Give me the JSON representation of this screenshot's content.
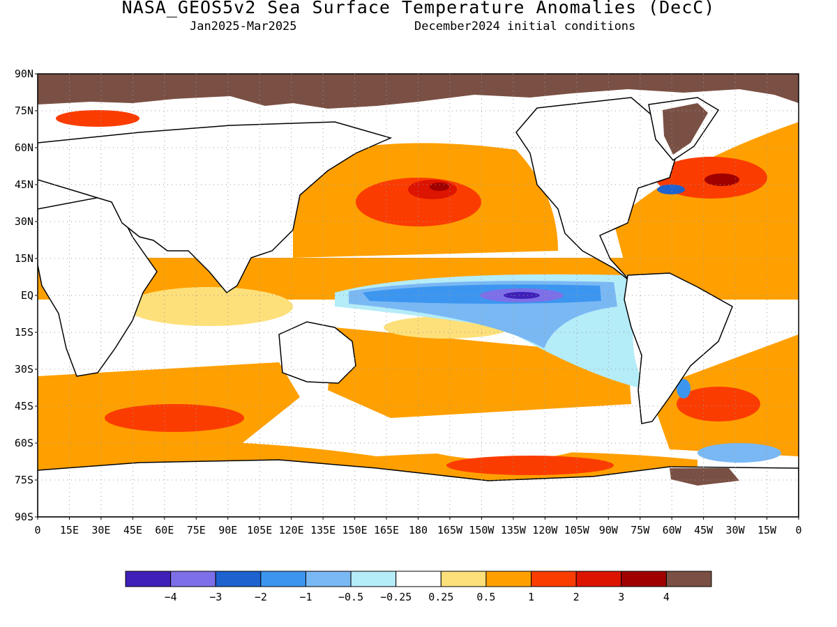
{
  "title": "NASA_GEOS5v2 Sea Surface Temperature Anomalies (DecC)",
  "subtitle_left": "Jan2025-Mar2025",
  "subtitle_right": "December2024 initial conditions",
  "lat_labels": [
    "90N",
    "75N",
    "60N",
    "45N",
    "30N",
    "15N",
    "EQ",
    "15S",
    "30S",
    "45S",
    "60S",
    "75S",
    "90S"
  ],
  "lon_labels": [
    "0",
    "15E",
    "30E",
    "45E",
    "60E",
    "75E",
    "90E",
    "105E",
    "120E",
    "135E",
    "150E",
    "165E",
    "180",
    "165W",
    "150W",
    "135W",
    "120W",
    "105W",
    "90W",
    "75W",
    "60W",
    "45W",
    "30W",
    "15W",
    "0"
  ],
  "colorbar": {
    "colors": [
      "#3f20b8",
      "#7d6fe8",
      "#1e62d0",
      "#3c96f0",
      "#7ab8f4",
      "#b4ecf8",
      "#ffffff",
      "#fde07a",
      "#ffa000",
      "#fb3c00",
      "#dc1400",
      "#a00000",
      "#7a5044"
    ],
    "labels": [
      "-4",
      "-3",
      "-2",
      "-1",
      "-0.5",
      "-0.25",
      "0.25",
      "0.5",
      "1",
      "2",
      "3",
      "4"
    ]
  },
  "colors": {
    "land_ice": "#7a5044",
    "ocean_default": "#ffa000"
  }
}
